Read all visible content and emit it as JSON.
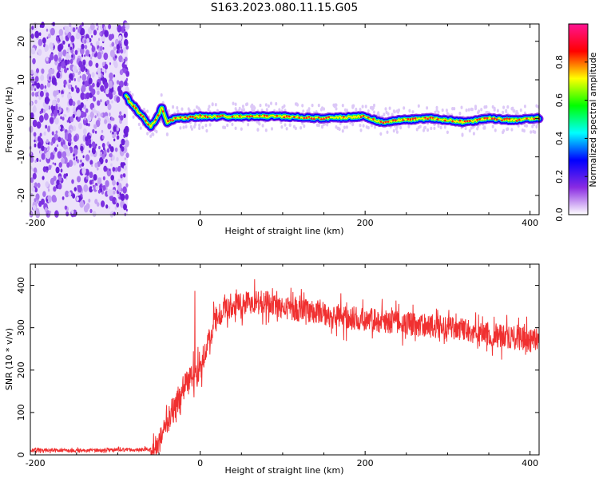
{
  "title": "S163.2023.080.11.15.G05",
  "chart_data": [
    {
      "type": "heatmap",
      "xlabel": "Height of straight line (km)",
      "ylabel": "Frequency (Hz)",
      "xlim": [
        -206,
        411
      ],
      "ylim": [
        -25,
        24.5
      ],
      "x_ticks": [
        -200,
        0,
        200,
        400
      ],
      "x_tick_labels": [
        "-200",
        "0",
        "200",
        "400"
      ],
      "y_ticks": [
        -20,
        -10,
        0,
        10,
        20
      ],
      "y_tick_labels": [
        "-20",
        "-10",
        "0",
        "10",
        "20"
      ],
      "noise_region_x": [
        -206,
        -88
      ],
      "trace": {
        "x": [
          -90,
          -85,
          -80,
          -75,
          -70,
          -65,
          -60,
          -55,
          -50,
          -47,
          -45,
          -42,
          -40,
          -35,
          -30,
          -20,
          0,
          50,
          100,
          150,
          200,
          220,
          240,
          280,
          300,
          320,
          350,
          380,
          411
        ],
        "y": [
          6,
          4,
          3,
          1.5,
          0.5,
          -1,
          -2,
          -1,
          1,
          3,
          2,
          0,
          -1,
          -0.5,
          0,
          0,
          0.5,
          0.5,
          0.5,
          0,
          0.5,
          -1,
          -0.5,
          0,
          -0.5,
          -1,
          0,
          -0.5,
          0
        ]
      },
      "colorbar": {
        "label": "Normalized spectral amplitude",
        "range": [
          0,
          1
        ],
        "ticks": [
          0,
          0.2,
          0.4,
          0.6,
          0.8
        ],
        "tick_labels": [
          "0.0",
          "0.2",
          "0.4",
          "0.6",
          "0.8"
        ],
        "colors": [
          "#ffffff",
          "#8a2be2",
          "#0000ff",
          "#00ffff",
          "#00ff00",
          "#ffff00",
          "#ff0000",
          "#ff1493"
        ]
      }
    },
    {
      "type": "line",
      "xlabel": "Height of straight line (km)",
      "ylabel": "SNR (10 * v/v)",
      "xlim": [
        -206,
        411
      ],
      "ylim": [
        0,
        450
      ],
      "x_ticks": [
        -200,
        0,
        200,
        400
      ],
      "x_tick_labels": [
        "-200",
        "0",
        "200",
        "400"
      ],
      "y_ticks": [
        0,
        100,
        200,
        300,
        400
      ],
      "y_tick_labels": [
        "0",
        "100",
        "200",
        "300",
        "400"
      ],
      "color": "#f03030",
      "series": [
        {
          "x": [
            -206,
            -150,
            -100,
            -70,
            -55,
            -50,
            -45,
            -40,
            -35,
            -30,
            -25,
            -20,
            -15,
            -10,
            -5,
            0,
            5,
            10,
            15,
            20,
            30,
            50,
            80,
            100,
            150,
            200,
            250,
            300,
            350,
            400,
            411
          ],
          "y": [
            12,
            10,
            12,
            12,
            15,
            30,
            60,
            80,
            100,
            120,
            140,
            160,
            170,
            180,
            190,
            200,
            240,
            270,
            300,
            320,
            345,
            360,
            360,
            350,
            330,
            320,
            310,
            300,
            285,
            270,
            270
          ]
        }
      ]
    }
  ]
}
